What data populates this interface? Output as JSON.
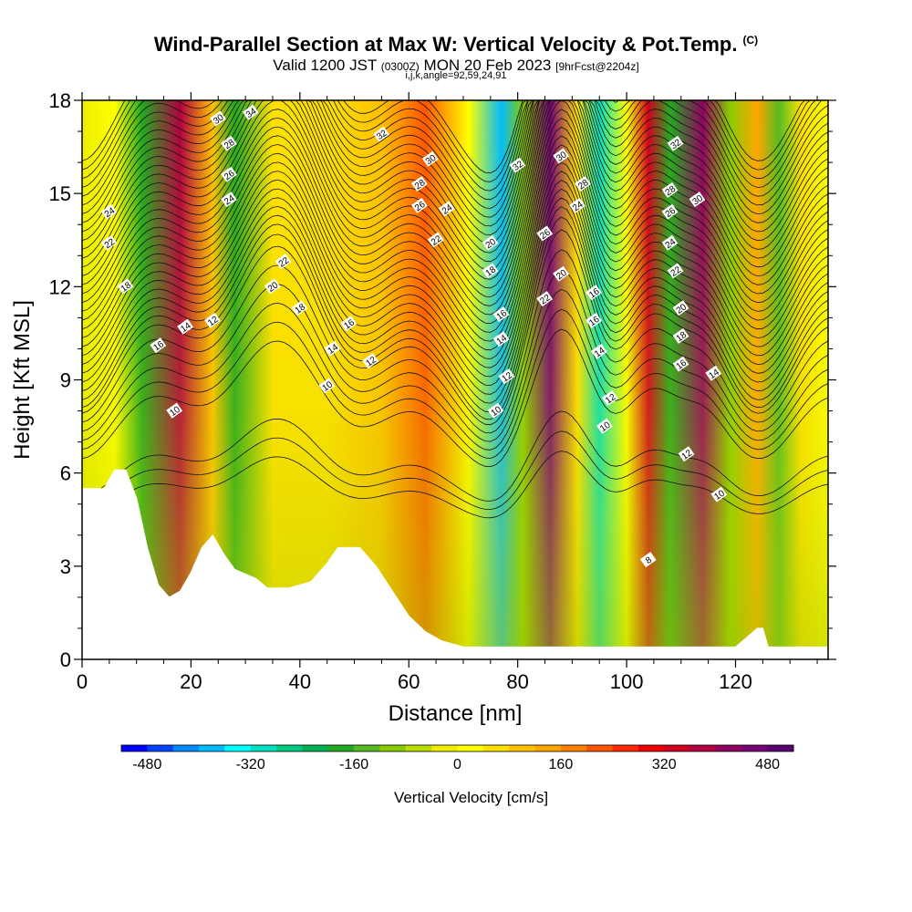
{
  "chart_data": {
    "type": "heatmap",
    "title": "Wind-Parallel Section at Max W: Vertical Velocity & Pot.Temp.",
    "title_mark": "(C)",
    "subtitle_main": "Valid 1200 JST",
    "subtitle_utc": "(0300Z)",
    "subtitle_date": "MON 20 Feb 2023",
    "subtitle_fcst": "[9hrFcst@2204z]",
    "subtitle_indices": "i,j,k,angle=92,59,24,91",
    "xlabel": "Distance [nm]",
    "ylabel": "Height [Kft MSL]",
    "xlim": [
      0,
      137
    ],
    "ylim": [
      0,
      18
    ],
    "x_ticks": [
      "0",
      "20",
      "40",
      "60",
      "80",
      "100",
      "120"
    ],
    "y_ticks": [
      "0",
      "3",
      "6",
      "9",
      "12",
      "15",
      "18"
    ],
    "colorbar": {
      "label": "Vertical Velocity [cm/s]",
      "range": [
        -520,
        520
      ],
      "step": 40,
      "tick_labels": [
        "-480",
        "-320",
        "-160",
        "0",
        "160",
        "320",
        "480"
      ],
      "colors": [
        "#0000ff",
        "#0044ff",
        "#0088ff",
        "#00bbff",
        "#00ffff",
        "#00e0c0",
        "#00c880",
        "#00b050",
        "#22a822",
        "#55bb22",
        "#88cc00",
        "#bbdd00",
        "#eeee00",
        "#ffff00",
        "#ffe000",
        "#ffc000",
        "#ffa500",
        "#ff8000",
        "#ff5500",
        "#ff2a00",
        "#ee0000",
        "#d00020",
        "#b00040",
        "#900060",
        "#760076",
        "#5a0070"
      ]
    },
    "vertical_velocity_bands": [
      {
        "x": 0,
        "w": -20
      },
      {
        "x": 6,
        "w": 20
      },
      {
        "x": 11,
        "w": -200
      },
      {
        "x": 18,
        "w": 360
      },
      {
        "x": 24,
        "w": 80
      },
      {
        "x": 28,
        "w": -200
      },
      {
        "x": 35,
        "w": 60
      },
      {
        "x": 45,
        "w": 40
      },
      {
        "x": 55,
        "w": 100
      },
      {
        "x": 63,
        "w": 220
      },
      {
        "x": 71,
        "w": 20
      },
      {
        "x": 77,
        "w": -400
      },
      {
        "x": 81,
        "w": -100
      },
      {
        "x": 86,
        "w": 440
      },
      {
        "x": 91,
        "w": 60
      },
      {
        "x": 95,
        "w": -320
      },
      {
        "x": 100,
        "w": 0
      },
      {
        "x": 104,
        "w": 320
      },
      {
        "x": 108,
        "w": -180
      },
      {
        "x": 114,
        "w": 400
      },
      {
        "x": 119,
        "w": -120
      },
      {
        "x": 124,
        "w": 120
      },
      {
        "x": 128,
        "w": -140
      },
      {
        "x": 132,
        "w": 60
      },
      {
        "x": 137,
        "w": 20
      }
    ],
    "terrain_profile": [
      [
        0,
        5.5
      ],
      [
        4,
        5.5
      ],
      [
        6,
        6.1
      ],
      [
        8,
        6.1
      ],
      [
        10,
        5.2
      ],
      [
        12,
        3.6
      ],
      [
        14,
        2.4
      ],
      [
        16,
        2.0
      ],
      [
        18,
        2.2
      ],
      [
        20,
        2.8
      ],
      [
        22,
        3.6
      ],
      [
        24,
        4.0
      ],
      [
        26,
        3.4
      ],
      [
        28,
        2.9
      ],
      [
        32,
        2.6
      ],
      [
        34,
        2.3
      ],
      [
        38,
        2.3
      ],
      [
        42,
        2.5
      ],
      [
        45,
        3.1
      ],
      [
        47,
        3.6
      ],
      [
        51,
        3.6
      ],
      [
        54,
        3.0
      ],
      [
        57,
        2.2
      ],
      [
        60,
        1.4
      ],
      [
        63,
        0.9
      ],
      [
        66,
        0.6
      ],
      [
        70,
        0.4
      ],
      [
        100,
        0.4
      ],
      [
        120,
        0.4
      ],
      [
        122,
        0.7
      ],
      [
        124,
        1.0
      ],
      [
        125,
        1.0
      ],
      [
        126,
        0.4
      ],
      [
        137,
        0.4
      ]
    ],
    "potential_temperature_labels": [
      {
        "x": 5,
        "y": 14.4,
        "v": "24"
      },
      {
        "x": 5,
        "y": 13.4,
        "v": "22"
      },
      {
        "x": 8,
        "y": 12.0,
        "v": "18"
      },
      {
        "x": 14,
        "y": 10.1,
        "v": "16"
      },
      {
        "x": 19,
        "y": 10.7,
        "v": "14"
      },
      {
        "x": 24,
        "y": 10.9,
        "v": "12"
      },
      {
        "x": 17,
        "y": 8.0,
        "v": "10"
      },
      {
        "x": 25,
        "y": 17.4,
        "v": "30"
      },
      {
        "x": 31,
        "y": 17.6,
        "v": "34"
      },
      {
        "x": 27,
        "y": 16.6,
        "v": "28"
      },
      {
        "x": 27,
        "y": 15.6,
        "v": "26"
      },
      {
        "x": 27,
        "y": 14.8,
        "v": "24"
      },
      {
        "x": 37,
        "y": 12.8,
        "v": "22"
      },
      {
        "x": 35,
        "y": 12.0,
        "v": "20"
      },
      {
        "x": 40,
        "y": 11.3,
        "v": "18"
      },
      {
        "x": 49,
        "y": 10.8,
        "v": "16"
      },
      {
        "x": 46,
        "y": 10.0,
        "v": "14"
      },
      {
        "x": 53,
        "y": 9.6,
        "v": "12"
      },
      {
        "x": 45,
        "y": 8.8,
        "v": "10"
      },
      {
        "x": 55,
        "y": 16.9,
        "v": "32"
      },
      {
        "x": 64,
        "y": 16.1,
        "v": "30"
      },
      {
        "x": 62,
        "y": 15.3,
        "v": "28"
      },
      {
        "x": 62,
        "y": 14.6,
        "v": "26"
      },
      {
        "x": 67,
        "y": 14.5,
        "v": "24"
      },
      {
        "x": 65,
        "y": 13.5,
        "v": "22"
      },
      {
        "x": 75,
        "y": 13.4,
        "v": "20"
      },
      {
        "x": 75,
        "y": 12.5,
        "v": "18"
      },
      {
        "x": 77,
        "y": 11.1,
        "v": "16"
      },
      {
        "x": 77,
        "y": 10.3,
        "v": "14"
      },
      {
        "x": 78,
        "y": 9.1,
        "v": "12"
      },
      {
        "x": 76,
        "y": 8.0,
        "v": "10"
      },
      {
        "x": 80,
        "y": 15.9,
        "v": "32"
      },
      {
        "x": 88,
        "y": 16.2,
        "v": "30"
      },
      {
        "x": 92,
        "y": 15.3,
        "v": "28"
      },
      {
        "x": 91,
        "y": 14.6,
        "v": "24"
      },
      {
        "x": 85,
        "y": 13.7,
        "v": "26"
      },
      {
        "x": 88,
        "y": 12.4,
        "v": "20"
      },
      {
        "x": 85,
        "y": 11.6,
        "v": "22"
      },
      {
        "x": 94,
        "y": 11.8,
        "v": "16"
      },
      {
        "x": 94,
        "y": 10.9,
        "v": "16"
      },
      {
        "x": 95,
        "y": 9.9,
        "v": "14"
      },
      {
        "x": 97,
        "y": 8.4,
        "v": "12"
      },
      {
        "x": 96,
        "y": 7.5,
        "v": "10"
      },
      {
        "x": 109,
        "y": 16.6,
        "v": "32"
      },
      {
        "x": 108,
        "y": 15.1,
        "v": "28"
      },
      {
        "x": 113,
        "y": 14.8,
        "v": "30"
      },
      {
        "x": 108,
        "y": 14.4,
        "v": "26"
      },
      {
        "x": 108,
        "y": 13.4,
        "v": "24"
      },
      {
        "x": 109,
        "y": 12.5,
        "v": "22"
      },
      {
        "x": 110,
        "y": 11.3,
        "v": "20"
      },
      {
        "x": 110,
        "y": 10.4,
        "v": "18"
      },
      {
        "x": 110,
        "y": 9.5,
        "v": "16"
      },
      {
        "x": 116,
        "y": 9.2,
        "v": "14"
      },
      {
        "x": 111,
        "y": 6.6,
        "v": "12"
      },
      {
        "x": 117,
        "y": 5.3,
        "v": "10"
      },
      {
        "x": 104,
        "y": 3.2,
        "v": "8"
      }
    ]
  }
}
